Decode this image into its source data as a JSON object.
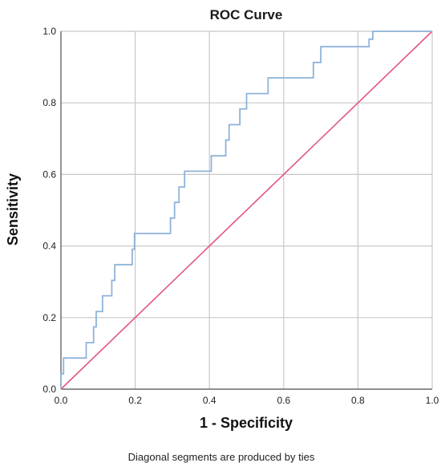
{
  "chart_data": {
    "type": "line",
    "title": "ROC Curve",
    "xlabel": "1 - Specificity",
    "ylabel": "Sensitivity",
    "xlim": [
      0.0,
      1.0
    ],
    "ylim": [
      0.0,
      1.0
    ],
    "grid": true,
    "x_ticks": [
      "0.0",
      "0.2",
      "0.4",
      "0.6",
      "0.8",
      "1.0"
    ],
    "y_ticks": [
      "0.0",
      "0.2",
      "0.4",
      "0.6",
      "0.8",
      "1.0"
    ],
    "footnote": "Diagonal segments are produced by ties",
    "colors": {
      "curve": "#8fb3d9",
      "reference": "#e0577e",
      "grid": "#c8c8c8",
      "axis": "#555555"
    },
    "series": [
      {
        "x": [
          0.0,
          0.0,
          0.0,
          0.007,
          0.007,
          0.068,
          0.068,
          0.088,
          0.088,
          0.095,
          0.095,
          0.112,
          0.112,
          0.137,
          0.137,
          0.145,
          0.145,
          0.192,
          0.192,
          0.198,
          0.198,
          0.295,
          0.295,
          0.306,
          0.306,
          0.318,
          0.318,
          0.333,
          0.333,
          0.405,
          0.405,
          0.444,
          0.444,
          0.453,
          0.453,
          0.482,
          0.482,
          0.5,
          0.5,
          0.558,
          0.558,
          0.68,
          0.68,
          0.7,
          0.7,
          0.83,
          0.83,
          0.84,
          0.84,
          1.0
        ],
        "y": [
          0.0,
          0.02,
          0.043,
          0.043,
          0.087,
          0.087,
          0.13,
          0.13,
          0.174,
          0.174,
          0.217,
          0.217,
          0.261,
          0.261,
          0.304,
          0.304,
          0.348,
          0.348,
          0.391,
          0.391,
          0.435,
          0.435,
          0.478,
          0.478,
          0.522,
          0.522,
          0.565,
          0.565,
          0.609,
          0.609,
          0.652,
          0.652,
          0.696,
          0.696,
          0.739,
          0.739,
          0.783,
          0.783,
          0.826,
          0.826,
          0.87,
          0.87,
          0.913,
          0.913,
          0.957,
          0.957,
          0.978,
          0.978,
          1.0,
          1.0
        ]
      },
      {
        "x": [
          0.0,
          1.0
        ],
        "y": [
          0.0,
          1.0
        ]
      }
    ]
  }
}
